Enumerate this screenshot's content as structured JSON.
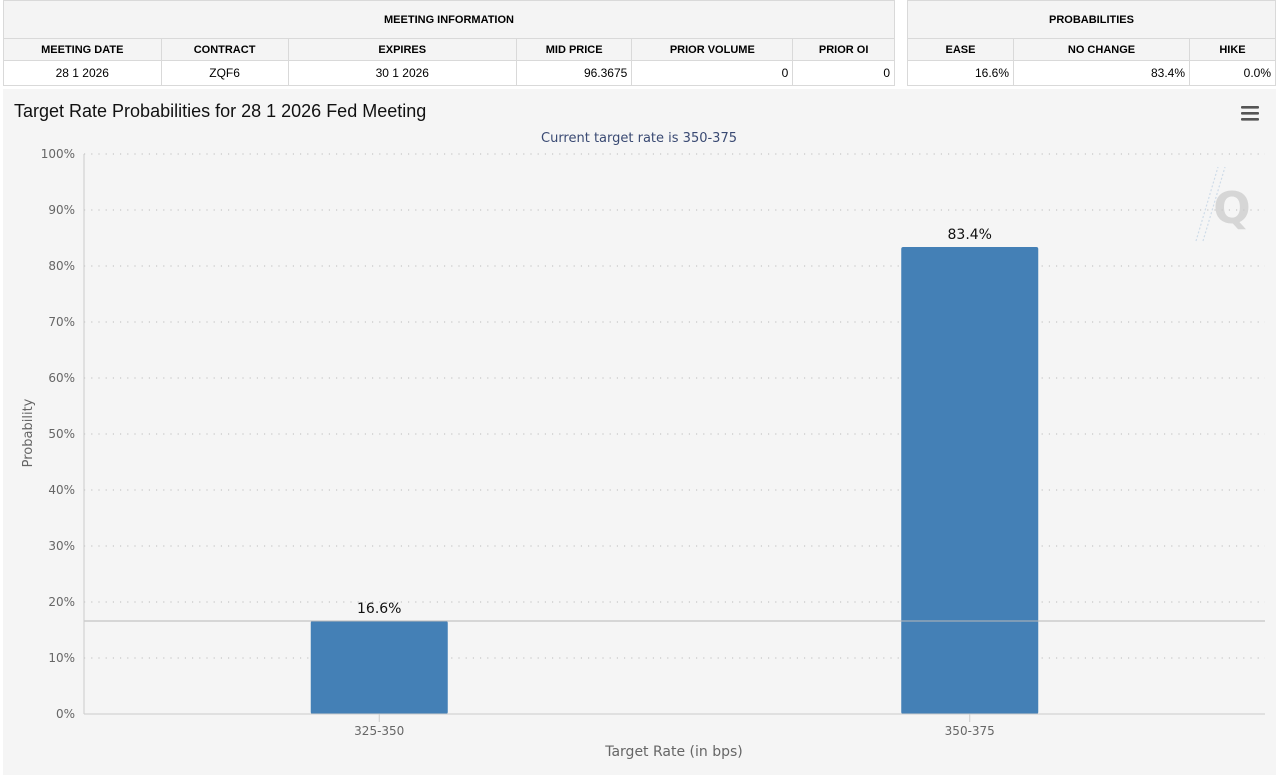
{
  "meeting_info": {
    "group_header": "MEETING INFORMATION",
    "columns": [
      "MEETING DATE",
      "CONTRACT",
      "EXPIRES",
      "MID PRICE",
      "PRIOR VOLUME",
      "PRIOR OI"
    ],
    "row": [
      "28 1 2026",
      "ZQF6",
      "30 1 2026",
      "96.3675",
      "0",
      "0"
    ]
  },
  "probabilities": {
    "group_header": "PROBABILITIES",
    "columns": [
      "EASE",
      "NO CHANGE",
      "HIKE"
    ],
    "row": [
      "16.6%",
      "83.4%",
      "0.0%"
    ]
  },
  "chart_data": {
    "type": "bar",
    "title": "Target Rate Probabilities for 28 1 2026 Fed Meeting",
    "subtitle": "Current target rate is 350-375",
    "xlabel": "Target Rate (in bps)",
    "ylabel": "Probability",
    "categories": [
      "325-350",
      "350-375"
    ],
    "values": [
      16.6,
      83.4
    ],
    "data_labels": [
      "16.6%",
      "83.4%"
    ],
    "ylim": [
      0,
      100
    ],
    "yticks": [
      "0%",
      "10%",
      "20%",
      "30%",
      "40%",
      "50%",
      "60%",
      "70%",
      "80%",
      "90%",
      "100%"
    ],
    "reference_line": 16.6,
    "grid": true,
    "legend": "none",
    "bar_color": "#4480b6",
    "watermark_letter": "Q"
  }
}
